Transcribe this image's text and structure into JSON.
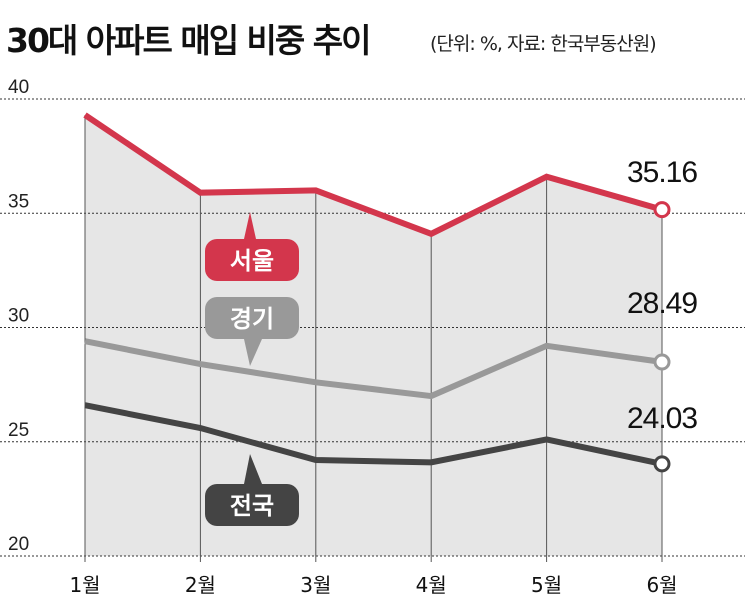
{
  "title": "30대 아파트 매입 비중 추이",
  "subtitle": "(단위: %, 자료: 한국부동산원)",
  "chart_data": {
    "type": "line",
    "x": [
      "1월",
      "2월",
      "3월",
      "4월",
      "5월",
      "6월"
    ],
    "ylim": [
      20,
      40
    ],
    "yticks": [
      "40",
      "35",
      "30",
      "25",
      "20"
    ],
    "grid": true,
    "series": [
      {
        "name": "서울",
        "values": [
          39.3,
          35.9,
          36.0,
          34.1,
          36.6,
          35.16
        ],
        "color": "#d3364c",
        "end_label": "35.16"
      },
      {
        "name": "경기",
        "values": [
          29.4,
          28.4,
          27.6,
          27.0,
          29.2,
          28.49
        ],
        "color": "#999999",
        "end_label": "28.49"
      },
      {
        "name": "전국",
        "values": [
          26.6,
          25.6,
          24.2,
          24.1,
          25.1,
          24.03
        ],
        "color": "#444444",
        "end_label": "24.03"
      }
    ]
  }
}
